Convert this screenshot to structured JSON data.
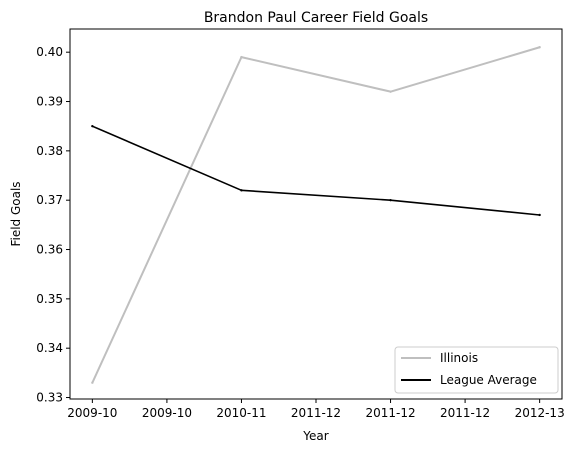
{
  "chart_data": {
    "type": "line",
    "title": "Brandon Paul Career Field Goals",
    "xlabel": "Year",
    "ylabel": "Field Goals",
    "x_tick_labels": [
      "2009-10",
      "2009-10",
      "2010-11",
      "2011-12",
      "2011-12",
      "2011-12",
      "2012-13"
    ],
    "x_range": [
      -0.15,
      3.15
    ],
    "ylim": [
      0.3297,
      0.4047
    ],
    "y_ticks": [
      0.33,
      0.34,
      0.35,
      0.36,
      0.37,
      0.38,
      0.39,
      0.4
    ],
    "y_tick_labels": [
      "0.33",
      "0.34",
      "0.35",
      "0.36",
      "0.37",
      "0.38",
      "0.39",
      "0.40"
    ],
    "grid": false,
    "legend_position": "bottom-right",
    "series": [
      {
        "name": "Illinois",
        "color": "#bfbfbf",
        "points": [
          {
            "x": 0,
            "y": 0.333
          },
          {
            "x": 1,
            "y": 0.399
          },
          {
            "x": 2,
            "y": 0.392
          },
          {
            "x": 3,
            "y": 0.401
          }
        ]
      },
      {
        "name": "League Average",
        "color": "#000000",
        "points": [
          {
            "x": 0,
            "y": 0.385
          },
          {
            "x": 1,
            "y": 0.372
          },
          {
            "x": 2,
            "y": 0.37
          },
          {
            "x": 3,
            "y": 0.367
          }
        ]
      }
    ]
  }
}
